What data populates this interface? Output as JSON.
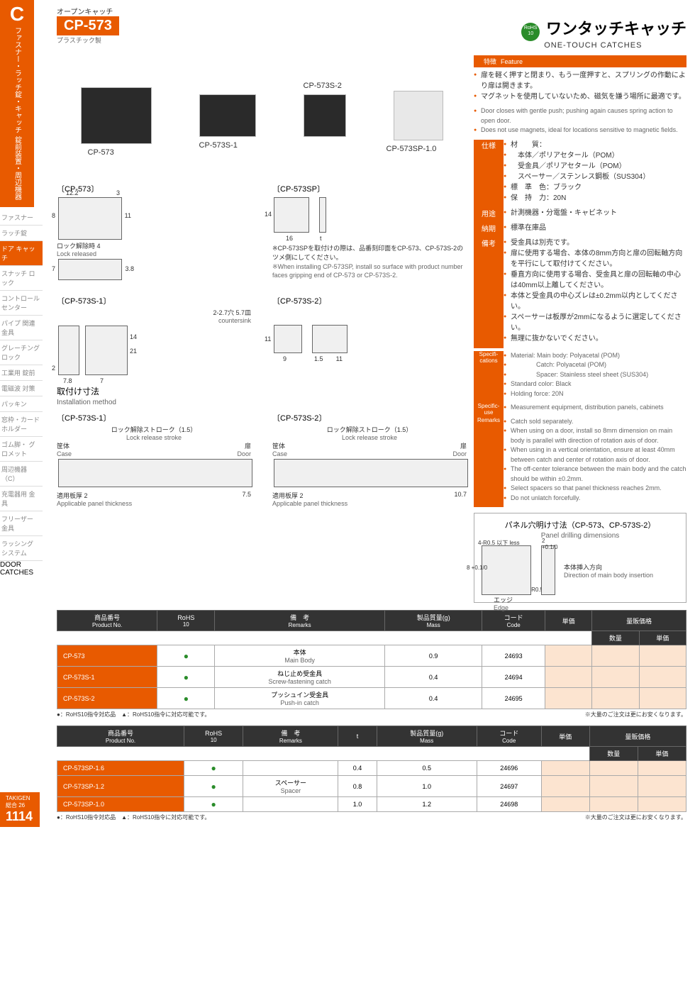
{
  "sidebar": {
    "section_letter": "C",
    "section_jp1": "錠前装置・周辺機器",
    "section_jp2": "ファスナー・ラッチ錠・キャッチ",
    "vlabel": "DOOR CATCHES",
    "items": [
      "ファスナー",
      "ラッチ錠",
      "ドア\nキャッチ",
      "スナッチ\nロック",
      "コントロール\nセンター",
      "パイプ\n関連金具",
      "グレーチング\nロック",
      "工業用\n錠前",
      "電磁波\n対策",
      "パッキン",
      "窓枠・カード\nホルダー",
      "ゴム脚・\nグロメット",
      "周辺機器\n（C）",
      "充電器用\n金具",
      "フリーザー\n金具",
      "ラッシング\nシステム"
    ],
    "active_index": 2
  },
  "header": {
    "category_jp": "オープンキャッチ",
    "product_no": "CP-573",
    "subtype": "プラスチック製",
    "rohs": "RoHS\n10",
    "title_jp": "ワンタッチキャッチ",
    "title_en": "ONE-TOUCH  CATCHES"
  },
  "photos": {
    "p1": "CP-573",
    "p2": "CP-573S-1",
    "p3": "CP-573S-2",
    "p4": "CP-573SP-1.0"
  },
  "feature": {
    "label": "特徴",
    "label_en": "Feature",
    "jp": [
      "扉を軽く押すと閉まり、もう一度押すと、スプリングの作動により扉は開きます。",
      "マグネットを使用していないため、磁気を嫌う場所に最適です。"
    ],
    "en": [
      "Door closes with gentle push; pushing again causes spring action to open door.",
      "Does not use magnets, ideal for locations sensitive to magnetic fields."
    ]
  },
  "spec_jp": {
    "spec_label": "仕様",
    "spec_lines": [
      "材　　質：",
      "　本体／ポリアセタール（POM）",
      "　受金具／ポリアセタール（POM）",
      "　スペーサー／ステンレス鋼板（SUS304）",
      "標　準　色：ブラック",
      "保　持　力：20N"
    ],
    "use_label": "用途",
    "use": "計測機器・分電盤・キャビネット",
    "deliv_label": "納期",
    "deliv": "標準在庫品",
    "note_label": "備考",
    "notes": [
      "受金具は別売です。",
      "扉に使用する場合、本体の8mm方向と扉の回転軸方向を平行にして取付けてください。",
      "垂直方向に使用する場合、受金具と扉の回転軸の中心は40mm以上離してください。",
      "本体と受金具の中心ズレは±0.2mm以内としてください。",
      "スペーサーは板厚が2mmになるように選定してください。",
      "無理に抜かないでください。"
    ]
  },
  "spec_en": {
    "spec_label": "Specifi-\ncations",
    "spec_lines": [
      "Material: Main body: Polyacetal (POM)",
      "　　　　Catch: Polyacetal (POM)",
      "　　　　Spacer: Stainless steel sheet (SUS304)",
      "Standard color: Black",
      "Holding force: 20N"
    ],
    "use_label": "Specific-\nuse",
    "use": "Measurement equipment, distribution panels, cabinets",
    "note_label": "Remarks",
    "notes": [
      "Catch sold separately.",
      "When using on a door, install so 8mm dimension on main body is parallel with direction of rotation axis of door.",
      "When using in a vertical orientation, ensure at least 40mm between catch and center of rotation axis of door.",
      "The off-center tolerance between the main body and the catch should be within ±0.2mm.",
      "Select spacers so that panel thickness reaches 2mm.",
      "Do not unlatch forcefully."
    ]
  },
  "diagrams": {
    "d1": "〔CP-573〕",
    "d1_dims": {
      "a": "12.2",
      "b": "3",
      "c": "8",
      "d": "11",
      "e": "ロック解除時 4",
      "e_en": "Lock released",
      "f": "7",
      "g": "3.8"
    },
    "d2": "〔CP-573SP〕",
    "d2_dims": {
      "a": "14",
      "b": "16",
      "c": "t"
    },
    "d2_note_jp": "※CP-573SPを取付けの際は、品番刻印面をCP-573、CP-573S-2のツメ側にしてください。",
    "d2_note_en": "※When installing CP-573SP, install so surface with product number faces gripping end of CP-573 or CP-573S-2.",
    "d3": "〔CP-573S-1〕",
    "d3_dims": {
      "a": "2-2.7穴 5.7皿",
      "a_en": "countersink",
      "b": "14",
      "c": "21",
      "d": "2",
      "e": "7.8",
      "f": "7"
    },
    "d4": "〔CP-573S-2〕",
    "d4_dims": {
      "a": "11",
      "b": "9",
      "c": "1.5",
      "d": "11"
    }
  },
  "install": {
    "title_jp": "取付け寸法",
    "title_en": "Installation method",
    "g1": "〔CP-573S-1〕",
    "g2": "〔CP-573S-2〕",
    "stroke_jp": "ロック解除ストローク（1.5）",
    "stroke_en": "Lock release stroke",
    "case_jp": "筐体",
    "case_en": "Case",
    "door_jp": "扉",
    "door_en": "Door",
    "panel_jp": "適用板厚 2",
    "panel_en": "Applicable panel thickness",
    "v1": "7.5",
    "v2": "10.7"
  },
  "panel": {
    "title": "パネル穴明け寸法（CP-573、CP-573S-2）",
    "sub": "Panel drilling dimensions",
    "dims": {
      "a": "4-R0.5 以下 less",
      "b": "8 +0.1/0",
      "c": "2 +0.1/0",
      "d": "R0.5",
      "e": "エッジ",
      "e_en": "Edge",
      "f": "本体挿入方向",
      "f_en": "Direction of main body insertion"
    }
  },
  "table1": {
    "headers": [
      {
        "jp": "商品番号",
        "en": "Product No."
      },
      {
        "jp": "RoHS",
        "en": "10"
      },
      {
        "jp": "備　考",
        "en": "Remarks"
      },
      {
        "jp": "製品質量(g)",
        "en": "Mass"
      },
      {
        "jp": "コード",
        "en": "Code"
      },
      {
        "jp": "単価",
        "en": ""
      },
      {
        "jp": "量販価格",
        "en": ""
      }
    ],
    "sub": [
      "数量",
      "単価"
    ],
    "rows": [
      {
        "no": "CP-573",
        "rohs": "●",
        "remark_jp": "本体",
        "remark_en": "Main Body",
        "mass": "0.9",
        "code": "24693"
      },
      {
        "no": "CP-573S-1",
        "rohs": "●",
        "remark_jp": "ねじ止め受金具",
        "remark_en": "Screw-fastening catch",
        "mass": "0.4",
        "code": "24694"
      },
      {
        "no": "CP-573S-2",
        "rohs": "●",
        "remark_jp": "プッシュイン受金具",
        "remark_en": "Push-in catch",
        "mass": "0.4",
        "code": "24695"
      }
    ],
    "note1": "●：RoHS10指令対応品　▲：RoHS10指令に対応可能です。",
    "note2": "※大量のご注文は更にお安くなります。"
  },
  "table2": {
    "headers": [
      {
        "jp": "商品番号",
        "en": "Product No."
      },
      {
        "jp": "RoHS",
        "en": "10"
      },
      {
        "jp": "備　考",
        "en": "Remarks"
      },
      {
        "jp": "t",
        "en": ""
      },
      {
        "jp": "製品質量(g)",
        "en": "Mass"
      },
      {
        "jp": "コード",
        "en": "Code"
      },
      {
        "jp": "単価",
        "en": ""
      },
      {
        "jp": "量販価格",
        "en": ""
      }
    ],
    "rows": [
      {
        "no": "CP-573SP-1.6",
        "rohs": "●",
        "t": "0.4",
        "mass": "0.5",
        "code": "24696"
      },
      {
        "no": "CP-573SP-1.2",
        "rohs": "●",
        "t": "0.8",
        "mass": "1.0",
        "code": "24697"
      },
      {
        "no": "CP-573SP-1.0",
        "rohs": "●",
        "t": "1.0",
        "mass": "1.2",
        "code": "24698"
      }
    ],
    "remark_jp": "スペーサー",
    "remark_en": "Spacer",
    "note1": "●：RoHS10指令対応品　▲：RoHS10指令に対応可能です。",
    "note2": "※大量のご注文は更にお安くなります。"
  },
  "pagenum": {
    "brand": "TAKIGEN",
    "label": "総合 26",
    "num": "1114"
  }
}
